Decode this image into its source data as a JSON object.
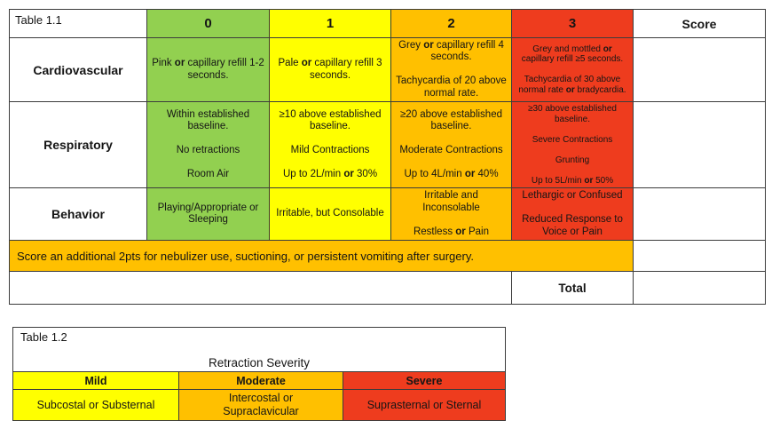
{
  "colors": {
    "score_0_green": "#92d050",
    "score_1_yellow": "#ffff00",
    "score_2_orange": "#ffc000",
    "score_3_red": "#ee3c1e",
    "border": "#3c3c3c"
  },
  "table1": {
    "title": "Table 1.1",
    "headers": [
      "0",
      "1",
      "2",
      "3",
      "Score"
    ],
    "rows": [
      {
        "label": "Cardiovascular",
        "cells": [
          "Pink **or** capillary refill 1-2 seconds.",
          "Pale **or** capillary refill 3 seconds.",
          "Grey **or** capillary refill 4 seconds.\n\nTachycardia of 20 above normal rate.",
          "Grey and mottled **or** capillary refill ≥5 seconds.\n\nTachycardia of 30 above normal rate **or** bradycardia."
        ]
      },
      {
        "label": "Respiratory",
        "cells": [
          "Within established baseline.\n\nNo retractions\n\nRoom Air",
          "≥10 above established baseline.\n\nMild Contractions\n\nUp to 2L/min **or** 30%",
          "≥20 above established baseline.\n\nModerate Contractions\n\nUp to 4L/min **or** 40%",
          "≥30 above established baseline.\n\nSevere Contractions\n\nGrunting\n\nUp to 5L/min **or** 50%"
        ]
      },
      {
        "label": "Behavior",
        "cells": [
          "Playing/Appropriate or Sleeping",
          "Irritable, but Consolable",
          "Irritable and Inconsolable\n\nRestless **or** Pain",
          "Lethargic or Confused\n\nReduced Response to Voice or Pain"
        ]
      }
    ],
    "banner": "Score an additional 2pts for nebulizer use, suctioning, or persistent vomiting after surgery.",
    "total_label": "Total"
  },
  "table2": {
    "title": "Table 1.2",
    "heading": "Retraction Severity",
    "columns": [
      {
        "level": "Mild",
        "desc": "Subcostal or Substernal"
      },
      {
        "level": "Moderate",
        "desc": "Intercostal or\nSupraclavicular"
      },
      {
        "level": "Severe",
        "desc": "Suprasternal or Sternal"
      }
    ]
  }
}
